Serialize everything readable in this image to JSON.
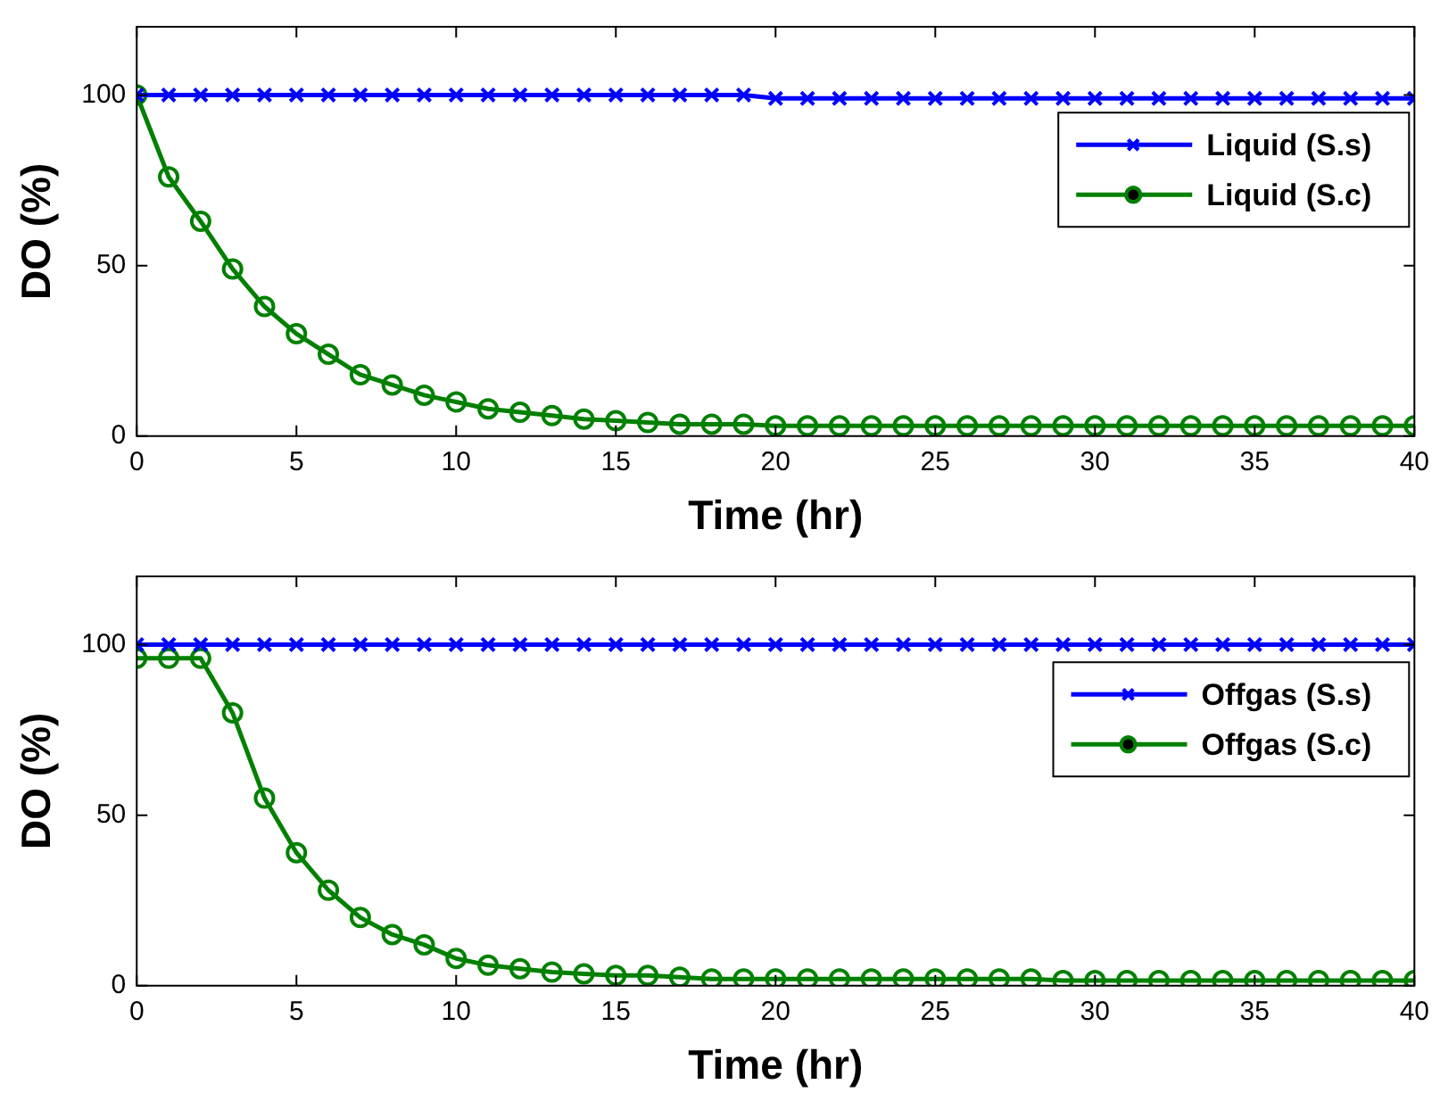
{
  "chart_data": [
    {
      "type": "line",
      "xlabel": "Time (hr)",
      "ylabel": "DO (%)",
      "xlim": [
        0,
        40
      ],
      "xticks": [
        0,
        5,
        10,
        15,
        20,
        25,
        30,
        35,
        40
      ],
      "ylim": [
        0,
        120
      ],
      "yticks": [
        0,
        50,
        100
      ],
      "grid": false,
      "legend": "top right",
      "x": [
        0,
        1,
        2,
        3,
        4,
        5,
        6,
        7,
        8,
        9,
        10,
        11,
        12,
        13,
        14,
        15,
        16,
        17,
        18,
        19,
        20,
        21,
        22,
        23,
        24,
        25,
        26,
        27,
        28,
        29,
        30,
        31,
        32,
        33,
        34,
        35,
        36,
        37,
        38,
        39,
        40
      ],
      "series": [
        {
          "name": "Liquid (S.s)",
          "color": "#0000ff",
          "marker": "cross",
          "values": [
            100,
            100,
            100,
            100,
            100,
            100,
            100,
            100,
            100,
            100,
            100,
            100,
            100,
            100,
            100,
            100,
            100,
            100,
            100,
            100,
            99,
            99,
            99,
            99,
            99,
            99,
            99,
            99,
            99,
            99,
            99,
            99,
            99,
            99,
            99,
            99,
            99,
            99,
            99,
            99,
            99
          ]
        },
        {
          "name": "Liquid (S.c)",
          "color": "#008000",
          "marker": "circle",
          "values": [
            100,
            76,
            63,
            49,
            38,
            30,
            24,
            18,
            15,
            12,
            10,
            8,
            7,
            6,
            5,
            4.5,
            4,
            3.5,
            3.5,
            3.5,
            3,
            3,
            3,
            3,
            3,
            3,
            3,
            3,
            3,
            3,
            3,
            3,
            3,
            3,
            3,
            3,
            3,
            3,
            3,
            3,
            3
          ]
        }
      ]
    },
    {
      "type": "line",
      "xlabel": "Time (hr)",
      "ylabel": "DO (%)",
      "xlim": [
        0,
        40
      ],
      "xticks": [
        0,
        5,
        10,
        15,
        20,
        25,
        30,
        35,
        40
      ],
      "ylim": [
        0,
        120
      ],
      "yticks": [
        0,
        50,
        100
      ],
      "grid": false,
      "legend": "top right",
      "x": [
        0,
        1,
        2,
        3,
        4,
        5,
        6,
        7,
        8,
        9,
        10,
        11,
        12,
        13,
        14,
        15,
        16,
        17,
        18,
        19,
        20,
        21,
        22,
        23,
        24,
        25,
        26,
        27,
        28,
        29,
        30,
        31,
        32,
        33,
        34,
        35,
        36,
        37,
        38,
        39,
        40
      ],
      "series": [
        {
          "name": "Offgas (S.s)",
          "color": "#0000ff",
          "marker": "cross",
          "values": [
            100,
            100,
            100,
            100,
            100,
            100,
            100,
            100,
            100,
            100,
            100,
            100,
            100,
            100,
            100,
            100,
            100,
            100,
            100,
            100,
            100,
            100,
            100,
            100,
            100,
            100,
            100,
            100,
            100,
            100,
            100,
            100,
            100,
            100,
            100,
            100,
            100,
            100,
            100,
            100,
            100
          ]
        },
        {
          "name": "Offgas (S.c)",
          "color": "#008000",
          "marker": "circle",
          "values": [
            96,
            96,
            96,
            80,
            55,
            39,
            28,
            20,
            15,
            12,
            8,
            6,
            5,
            4,
            3.5,
            3,
            3,
            2.5,
            2,
            2,
            2,
            2,
            2,
            2,
            2,
            2,
            2,
            2,
            2,
            1.5,
            1.5,
            1.5,
            1.5,
            1.5,
            1.5,
            1.5,
            1.5,
            1.5,
            1.5,
            1.5,
            1.5
          ]
        }
      ]
    }
  ]
}
